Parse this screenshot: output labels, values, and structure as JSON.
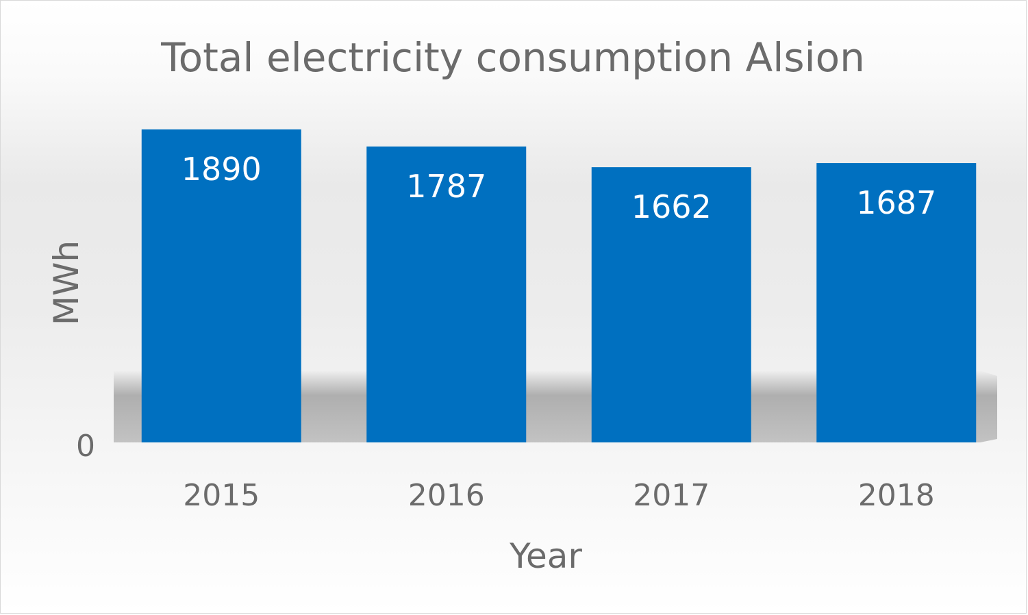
{
  "chart_data": {
    "type": "bar",
    "title": "Total electricity consumption Alsion",
    "xlabel": "Year",
    "ylabel": "MWh",
    "categories": [
      "2015",
      "2016",
      "2017",
      "2018"
    ],
    "values": [
      1890,
      1787,
      1662,
      1687
    ],
    "y_tick_labels": [
      "0"
    ],
    "ylim": [
      0,
      2000
    ],
    "data_labels": true,
    "grid": false,
    "legend": "none",
    "bar_color": "#0070c0"
  }
}
